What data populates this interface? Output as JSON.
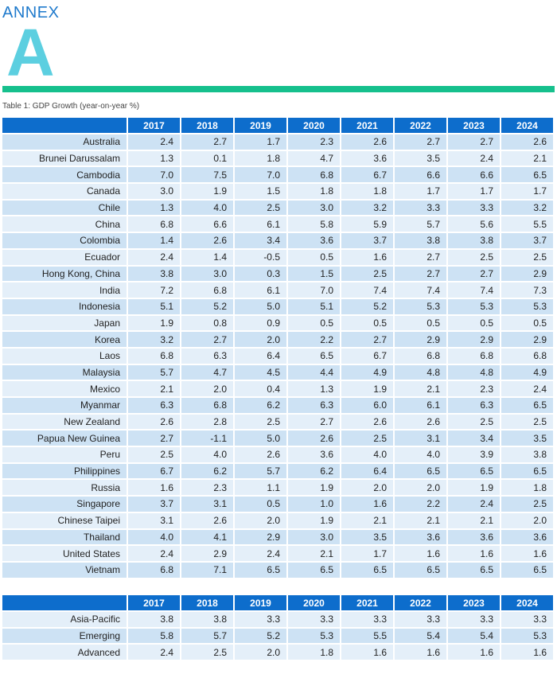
{
  "header": {
    "annex_label": "ANNEX",
    "annex_letter": "A",
    "table_caption": "Table 1: GDP Growth (year-on-year %)"
  },
  "colors": {
    "header_blue": "#0d6dcc",
    "row_dark": "#cde2f4",
    "row_light": "#e4eff9",
    "rule_green": "#16c08d",
    "letter_cyan": "#5ccfe0",
    "annex_blue": "#1f7acc"
  },
  "years": [
    "2017",
    "2018",
    "2019",
    "2020",
    "2021",
    "2022",
    "2023",
    "2024"
  ],
  "economies": [
    {
      "name": "Australia",
      "values": [
        "2.4",
        "2.7",
        "1.7",
        "2.3",
        "2.6",
        "2.7",
        "2.7",
        "2.6"
      ]
    },
    {
      "name": "Brunei Darussalam",
      "values": [
        "1.3",
        "0.1",
        "1.8",
        "4.7",
        "3.6",
        "3.5",
        "2.4",
        "2.1"
      ]
    },
    {
      "name": "Cambodia",
      "values": [
        "7.0",
        "7.5",
        "7.0",
        "6.8",
        "6.7",
        "6.6",
        "6.6",
        "6.5"
      ]
    },
    {
      "name": "Canada",
      "values": [
        "3.0",
        "1.9",
        "1.5",
        "1.8",
        "1.8",
        "1.7",
        "1.7",
        "1.7"
      ]
    },
    {
      "name": "Chile",
      "values": [
        "1.3",
        "4.0",
        "2.5",
        "3.0",
        "3.2",
        "3.3",
        "3.3",
        "3.2"
      ]
    },
    {
      "name": "China",
      "values": [
        "6.8",
        "6.6",
        "6.1",
        "5.8",
        "5.9",
        "5.7",
        "5.6",
        "5.5"
      ]
    },
    {
      "name": "Colombia",
      "values": [
        "1.4",
        "2.6",
        "3.4",
        "3.6",
        "3.7",
        "3.8",
        "3.8",
        "3.7"
      ]
    },
    {
      "name": "Ecuador",
      "values": [
        "2.4",
        "1.4",
        "-0.5",
        "0.5",
        "1.6",
        "2.7",
        "2.5",
        "2.5"
      ]
    },
    {
      "name": "Hong Kong, China",
      "values": [
        "3.8",
        "3.0",
        "0.3",
        "1.5",
        "2.5",
        "2.7",
        "2.7",
        "2.9"
      ]
    },
    {
      "name": "India",
      "values": [
        "7.2",
        "6.8",
        "6.1",
        "7.0",
        "7.4",
        "7.4",
        "7.4",
        "7.3"
      ]
    },
    {
      "name": "Indonesia",
      "values": [
        "5.1",
        "5.2",
        "5.0",
        "5.1",
        "5.2",
        "5.3",
        "5.3",
        "5.3"
      ]
    },
    {
      "name": "Japan",
      "values": [
        "1.9",
        "0.8",
        "0.9",
        "0.5",
        "0.5",
        "0.5",
        "0.5",
        "0.5"
      ]
    },
    {
      "name": "Korea",
      "values": [
        "3.2",
        "2.7",
        "2.0",
        "2.2",
        "2.7",
        "2.9",
        "2.9",
        "2.9"
      ]
    },
    {
      "name": "Laos",
      "values": [
        "6.8",
        "6.3",
        "6.4",
        "6.5",
        "6.7",
        "6.8",
        "6.8",
        "6.8"
      ]
    },
    {
      "name": "Malaysia",
      "values": [
        "5.7",
        "4.7",
        "4.5",
        "4.4",
        "4.9",
        "4.8",
        "4.8",
        "4.9"
      ]
    },
    {
      "name": "Mexico",
      "values": [
        "2.1",
        "2.0",
        "0.4",
        "1.3",
        "1.9",
        "2.1",
        "2.3",
        "2.4"
      ]
    },
    {
      "name": "Myanmar",
      "values": [
        "6.3",
        "6.8",
        "6.2",
        "6.3",
        "6.0",
        "6.1",
        "6.3",
        "6.5"
      ]
    },
    {
      "name": "New Zealand",
      "values": [
        "2.6",
        "2.8",
        "2.5",
        "2.7",
        "2.6",
        "2.6",
        "2.5",
        "2.5"
      ]
    },
    {
      "name": "Papua New Guinea",
      "values": [
        "2.7",
        "-1.1",
        "5.0",
        "2.6",
        "2.5",
        "3.1",
        "3.4",
        "3.5"
      ]
    },
    {
      "name": "Peru",
      "values": [
        "2.5",
        "4.0",
        "2.6",
        "3.6",
        "4.0",
        "4.0",
        "3.9",
        "3.8"
      ]
    },
    {
      "name": "Philippines",
      "values": [
        "6.7",
        "6.2",
        "5.7",
        "6.2",
        "6.4",
        "6.5",
        "6.5",
        "6.5"
      ]
    },
    {
      "name": "Russia",
      "values": [
        "1.6",
        "2.3",
        "1.1",
        "1.9",
        "2.0",
        "2.0",
        "1.9",
        "1.8"
      ]
    },
    {
      "name": "Singapore",
      "values": [
        "3.7",
        "3.1",
        "0.5",
        "1.0",
        "1.6",
        "2.2",
        "2.4",
        "2.5"
      ]
    },
    {
      "name": "Chinese Taipei",
      "values": [
        "3.1",
        "2.6",
        "2.0",
        "1.9",
        "2.1",
        "2.1",
        "2.1",
        "2.0"
      ]
    },
    {
      "name": "Thailand",
      "values": [
        "4.0",
        "4.1",
        "2.9",
        "3.0",
        "3.5",
        "3.6",
        "3.6",
        "3.6"
      ]
    },
    {
      "name": "United States",
      "values": [
        "2.4",
        "2.9",
        "2.4",
        "2.1",
        "1.7",
        "1.6",
        "1.6",
        "1.6"
      ]
    },
    {
      "name": "Vietnam",
      "values": [
        "6.8",
        "7.1",
        "6.5",
        "6.5",
        "6.5",
        "6.5",
        "6.5",
        "6.5"
      ]
    }
  ],
  "aggregates": [
    {
      "name": "Asia-Pacific",
      "values": [
        "3.8",
        "3.8",
        "3.3",
        "3.3",
        "3.3",
        "3.3",
        "3.3",
        "3.3"
      ]
    },
    {
      "name": "Emerging",
      "values": [
        "5.8",
        "5.7",
        "5.2",
        "5.3",
        "5.5",
        "5.4",
        "5.4",
        "5.3"
      ]
    },
    {
      "name": "Advanced",
      "values": [
        "2.4",
        "2.5",
        "2.0",
        "1.8",
        "1.6",
        "1.6",
        "1.6",
        "1.6"
      ]
    }
  ]
}
